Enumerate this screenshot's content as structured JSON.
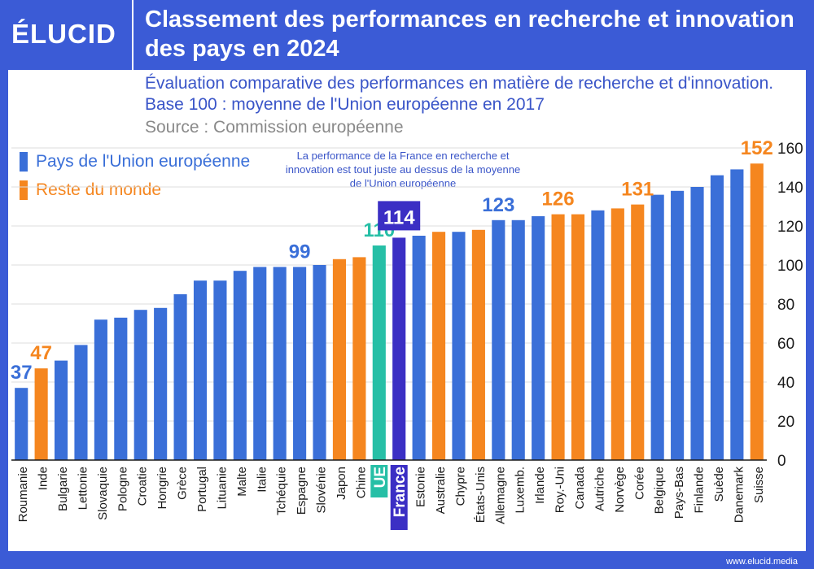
{
  "header": {
    "logo": "ÉLUCID",
    "title": "Classement des performances en recherche et innovation des pays en 2024"
  },
  "subtitle": "Évaluation comparative des performances en matière de recherche et d'innovation. Base 100 : moyenne de l'Union européenne en 2017",
  "source": "Source : Commission européenne",
  "legend": [
    {
      "label": "Pays de l'Union européenne",
      "color": "#3a6fd8"
    },
    {
      "label": "Reste du monde",
      "color": "#f5861f"
    }
  ],
  "note": "La performance de la France en recherche et innovation est tout juste au dessus de la moyenne de l'Union européenne",
  "footer": "www.elucid.media",
  "colors": {
    "eu": "#3a6fd8",
    "world": "#f5861f",
    "ue": "#26bfa6",
    "france": "#3b2fc4",
    "axis": "#1a1a1a",
    "grid": "#dcdcdc"
  },
  "chart_data": {
    "type": "bar",
    "title": "Classement des performances en recherche et innovation des pays en 2024",
    "ylim": [
      0,
      160
    ],
    "yticks": [
      0,
      20,
      40,
      60,
      80,
      100,
      120,
      140,
      160
    ],
    "categories": [
      "Roumanie",
      "Inde",
      "Bulgarie",
      "Lettonie",
      "Slovaquie",
      "Pologne",
      "Croatie",
      "Hongrie",
      "Grèce",
      "Portugal",
      "Lituanie",
      "Malte",
      "Italie",
      "Tchéquie",
      "Espagne",
      "Slovénie",
      "Japon",
      "Chine",
      "UE",
      "France",
      "Estonie",
      "Australie",
      "Chypre",
      "États-Unis",
      "Allemagne",
      "Luxemb.",
      "Irlande",
      "Roy.-Uni",
      "Canada",
      "Autriche",
      "Norvège",
      "Corée",
      "Belgique",
      "Pays-Bas",
      "Finlande",
      "Suède",
      "Danemark",
      "Suisse"
    ],
    "values": [
      37,
      47,
      51,
      59,
      72,
      73,
      77,
      78,
      85,
      92,
      92,
      97,
      99,
      99,
      99,
      100,
      103,
      104,
      110,
      114,
      115,
      117,
      117,
      118,
      123,
      123,
      125,
      126,
      126,
      128,
      129,
      131,
      136,
      138,
      140,
      146,
      149,
      152
    ],
    "group": [
      "eu",
      "world",
      "eu",
      "eu",
      "eu",
      "eu",
      "eu",
      "eu",
      "eu",
      "eu",
      "eu",
      "eu",
      "eu",
      "eu",
      "eu",
      "eu",
      "world",
      "world",
      "ue",
      "france",
      "eu",
      "world",
      "eu",
      "world",
      "eu",
      "eu",
      "eu",
      "world",
      "world",
      "eu",
      "world",
      "world",
      "eu",
      "eu",
      "eu",
      "eu",
      "eu",
      "world"
    ],
    "labels": [
      {
        "index": 0,
        "text": "37",
        "color": "#3a6fd8"
      },
      {
        "index": 1,
        "text": "47",
        "color": "#f5861f"
      },
      {
        "index": 14,
        "text": "99",
        "color": "#3a6fd8"
      },
      {
        "index": 18,
        "text": "110",
        "color": "#26bfa6"
      },
      {
        "index": 19,
        "text": "114",
        "color": "#ffffff",
        "boxed": true
      },
      {
        "index": 24,
        "text": "123",
        "color": "#3a6fd8"
      },
      {
        "index": 27,
        "text": "126",
        "color": "#f5861f"
      },
      {
        "index": 31,
        "text": "131",
        "color": "#f5861f"
      },
      {
        "index": 37,
        "text": "152",
        "color": "#f5861f"
      }
    ]
  }
}
